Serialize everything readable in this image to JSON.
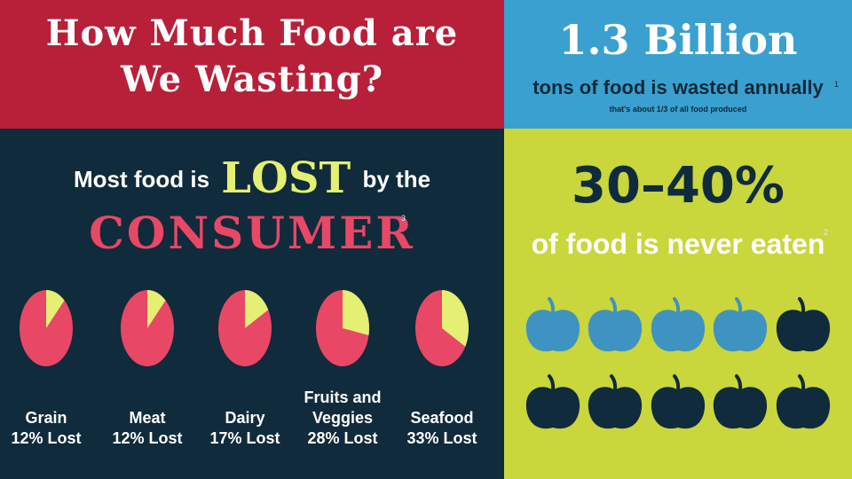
{
  "title": {
    "line1": "How Much Food are",
    "line2": "We Wasting?"
  },
  "billion": {
    "amount": "1.3 Billion",
    "subtitle": "tons of food is wasted annually",
    "sup": "1",
    "note": "that's about 1/3 of all food produced"
  },
  "lost": {
    "prefix": "Most food is",
    "emphasis": "LOST",
    "suffix": "by the",
    "consumer": "CONSUMER",
    "sup": "3"
  },
  "never_eaten": {
    "percent": "30–40%",
    "text": "of food is never eaten",
    "sup": "2"
  },
  "colors": {
    "red": "#b8203a",
    "blue": "#3aa0cf",
    "navy": "#102b3b",
    "lime": "#c9d63c",
    "pie_red": "#e84866",
    "pie_yellow": "#e4ef73",
    "apple_blue": "#3f93c0",
    "apple_dark": "#102b3b"
  },
  "apples": {
    "total": 10,
    "wasted_blue": 4
  },
  "chart_data": {
    "type": "pie",
    "title": "",
    "series": [
      {
        "name": "Grain",
        "label_lines": [
          "Grain",
          "12% Lost"
        ],
        "lost_pct": 12
      },
      {
        "name": "Meat",
        "label_lines": [
          "Meat",
          "12% Lost"
        ],
        "lost_pct": 12
      },
      {
        "name": "Dairy",
        "label_lines": [
          "Dairy",
          "17% Lost"
        ],
        "lost_pct": 17
      },
      {
        "name": "Fruits and Veggies",
        "label_lines": [
          "Fruits and",
          "Veggies",
          "28% Lost"
        ],
        "lost_pct": 28
      },
      {
        "name": "Seafood",
        "label_lines": [
          "Seafood",
          "33% Lost"
        ],
        "lost_pct": 33
      }
    ]
  }
}
